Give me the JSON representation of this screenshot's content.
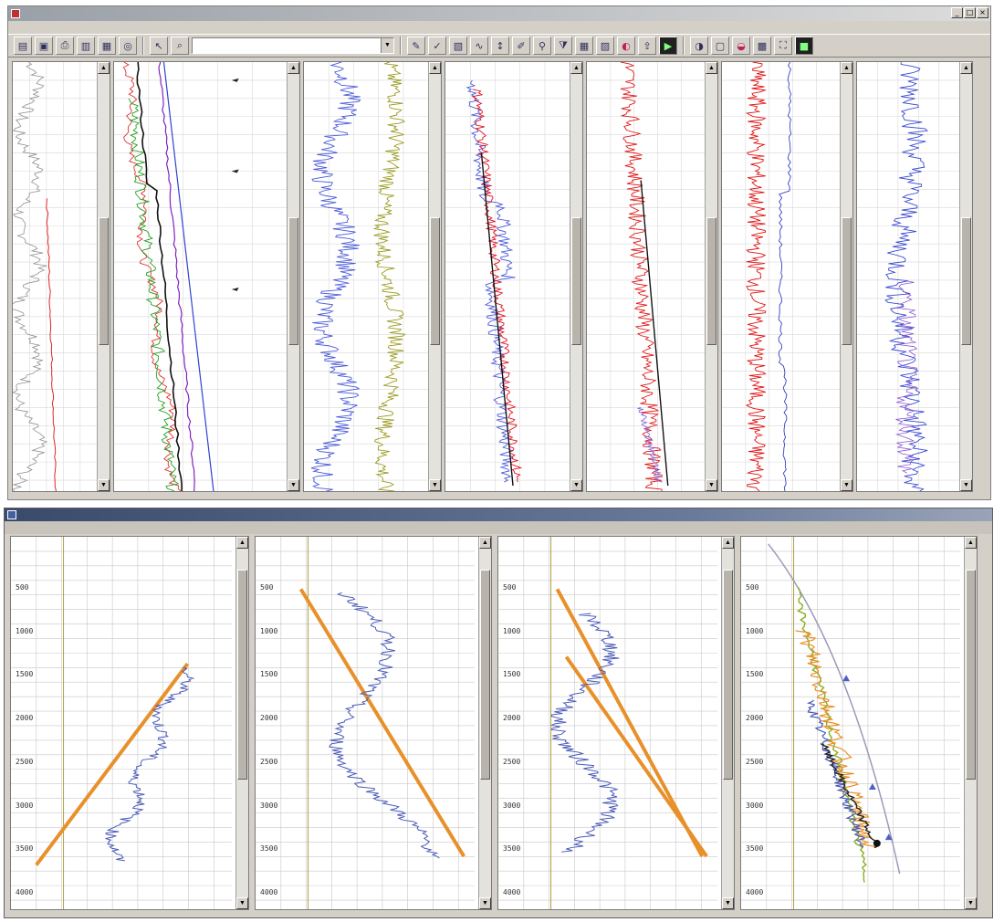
{
  "top_window": {
    "title": "",
    "menu": [],
    "toolbar": {
      "selector_value": "",
      "buttons": [
        "open-file-icon",
        "save-icon",
        "print-icon",
        "depth-icon",
        "crossplot-icon",
        "well-icon",
        "cursor-icon",
        "zoom-icon",
        "edit-icon",
        "pick-icon",
        "track-icon",
        "curve-icon",
        "scale-icon",
        "pen-icon",
        "find-icon",
        "filter-icon",
        "grid-icon",
        "layout-icon",
        "color-icon",
        "export-icon",
        "film-icon",
        "shade-icon",
        "window-icon",
        "color2-icon",
        "tile-icon",
        "fit-icon",
        "dark-icon"
      ]
    },
    "tracks": [
      {
        "labels": [],
        "curves": [
          {
            "color": "#909090"
          },
          {
            "color": "#e02020"
          }
        ]
      },
      {
        "labels": [],
        "curves": [
          {
            "color": "#e03030"
          },
          {
            "color": "#20a020"
          },
          {
            "color": "#101010"
          },
          {
            "color": "#8020c0"
          },
          {
            "color": "#3040d0"
          }
        ]
      },
      {
        "labels": [],
        "curves": [
          {
            "color": "#4a5ad8"
          },
          {
            "color": "#9a9a20"
          }
        ]
      },
      {
        "labels": [],
        "curves": [
          {
            "color": "#e01020"
          },
          {
            "color": "#4a5ad8"
          },
          {
            "color": "#101010"
          }
        ]
      },
      {
        "labels": [],
        "curves": [
          {
            "color": "#e01818"
          },
          {
            "color": "#8a6ad8"
          },
          {
            "color": "#101010"
          }
        ]
      },
      {
        "labels": [],
        "curves": [
          {
            "color": "#e01010"
          },
          {
            "color": "#3040c0"
          }
        ]
      },
      {
        "labels": [],
        "curves": [
          {
            "color": "#3a4ad0"
          },
          {
            "color": "#8a5ad0"
          }
        ]
      }
    ]
  },
  "bottom_window": {
    "title": "",
    "menu": [],
    "depth_ticks": [
      "500",
      "1000",
      "1500",
      "2000",
      "2500",
      "3000",
      "3500",
      "4000"
    ],
    "tracks": [
      {
        "labels": []
      },
      {
        "labels": []
      },
      {
        "labels": []
      },
      {
        "labels": [],
        "legend": []
      }
    ],
    "colors": {
      "trend": "#e8902a",
      "log": "#4a5ab8",
      "gray_curve": "#9a9ab8",
      "green_curve": "#88b020"
    }
  },
  "chart_data": {
    "type": "line",
    "title": "",
    "xlabel": "",
    "ylabel": "",
    "y_reversed": true,
    "ylim": [
      0,
      4000
    ],
    "series": []
  }
}
